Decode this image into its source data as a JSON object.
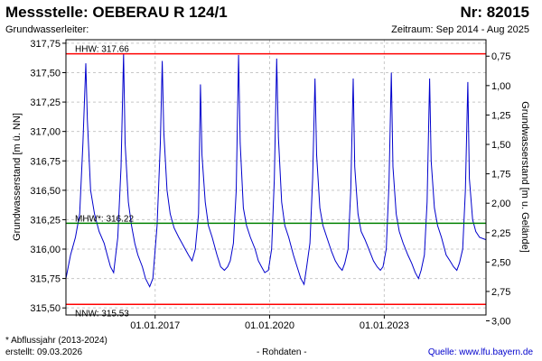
{
  "header": {
    "title": "Messstelle: OEBERAU R 124/1",
    "number": "Nr: 82015",
    "aquifer_label": "Grundwasserleiter:",
    "period": "Zeitraum: Sep 2014 - Aug 2025"
  },
  "footer": {
    "footnote": "* Abflussjahr (2013-2024)",
    "created": "erstellt:  09.03.2026",
    "status": "- Rohdaten -",
    "source": "Quelle: www.lfu.bayern.de"
  },
  "colors": {
    "series": "#0000cc",
    "hhw": "#ff0000",
    "nnw": "#ff0000",
    "mhw": "#008000",
    "grid": "#c8c8c8"
  },
  "chart_data": {
    "type": "line",
    "ylabel": "Grundwasserstand [m ü. NN]",
    "y2label": "Grundwasserstand [m u. Gelände]",
    "ylim": [
      315.44,
      317.78
    ],
    "xlim": [
      "2014-09-01",
      "2025-08-31"
    ],
    "yticks": [
      315.5,
      315.75,
      316.0,
      316.25,
      316.5,
      316.75,
      317.0,
      317.25,
      317.5,
      317.75
    ],
    "ytick_labels": [
      "315,50",
      "315,75",
      "316,00",
      "316,25",
      "316,50",
      "316,75",
      "317,00",
      "317,25",
      "317,50",
      "317,75"
    ],
    "y2ticks": [
      0.75,
      1.0,
      1.25,
      1.5,
      1.75,
      2.0,
      2.25,
      2.5,
      2.75,
      3.0
    ],
    "y2tick_labels": [
      "0,75",
      "1,00",
      "1,25",
      "1,50",
      "1,75",
      "2,00",
      "2,25",
      "2,50",
      "2,75",
      "3,00"
    ],
    "xticks": [
      "2017-01-01",
      "2020-01-01",
      "2023-01-01"
    ],
    "xtick_labels": [
      "01.01.2017",
      "01.01.2020",
      "01.01.2023"
    ],
    "grid": true,
    "reference_lines": [
      {
        "key": "hhw",
        "label": "HHW: 317.66",
        "value": 317.66
      },
      {
        "key": "mhw",
        "label": "MHW*: 316.22",
        "value": 316.22
      },
      {
        "key": "nnw",
        "label": "NNW: 315.53",
        "value": 315.53
      }
    ],
    "series": [
      {
        "x": [
          "2014-09-01",
          "2014-10-15",
          "2014-12-01",
          "2015-01-10",
          "2015-02-10",
          "2015-03-10",
          "2015-03-25",
          "2015-04-25",
          "2015-06-01",
          "2015-07-15",
          "2015-09-01",
          "2015-10-01",
          "2015-11-01",
          "2015-12-01",
          "2016-01-10",
          "2016-02-10",
          "2016-03-05",
          "2016-03-20",
          "2016-04-20",
          "2016-05-20",
          "2016-06-20",
          "2016-07-20",
          "2016-09-01",
          "2016-10-01",
          "2016-11-10",
          "2016-12-10",
          "2017-01-20",
          "2017-02-20",
          "2017-03-10",
          "2017-03-25",
          "2017-04-25",
          "2017-05-25",
          "2017-07-01",
          "2017-08-15",
          "2017-09-15",
          "2017-10-15",
          "2017-11-15",
          "2017-12-20",
          "2018-01-20",
          "2018-02-20",
          "2018-03-10",
          "2018-03-25",
          "2018-04-25",
          "2018-05-25",
          "2018-07-01",
          "2018-08-15",
          "2018-09-20",
          "2018-10-25",
          "2018-11-25",
          "2018-12-20",
          "2019-01-20",
          "2019-02-15",
          "2019-03-10",
          "2019-03-25",
          "2019-04-25",
          "2019-05-25",
          "2019-07-01",
          "2019-08-15",
          "2019-09-15",
          "2019-10-15",
          "2019-11-15",
          "2019-12-20",
          "2020-01-20",
          "2020-02-15",
          "2020-03-08",
          "2020-03-25",
          "2020-04-25",
          "2020-05-25",
          "2020-07-01",
          "2020-08-15",
          "2020-09-20",
          "2020-10-25",
          "2020-11-25",
          "2020-12-20",
          "2021-01-20",
          "2021-02-15",
          "2021-03-10",
          "2021-03-25",
          "2021-04-25",
          "2021-05-25",
          "2021-07-01",
          "2021-08-15",
          "2021-09-20",
          "2021-10-25",
          "2021-11-25",
          "2021-12-20",
          "2022-01-20",
          "2022-02-15",
          "2022-03-10",
          "2022-03-25",
          "2022-04-25",
          "2022-05-25",
          "2022-07-01",
          "2022-08-15",
          "2022-09-20",
          "2022-10-25",
          "2022-11-25",
          "2022-12-20",
          "2023-01-20",
          "2023-02-15",
          "2023-03-10",
          "2023-03-25",
          "2023-04-25",
          "2023-05-25",
          "2023-07-01",
          "2023-08-15",
          "2023-09-20",
          "2023-10-25",
          "2023-11-25",
          "2023-12-20",
          "2024-01-20",
          "2024-02-15",
          "2024-03-10",
          "2024-03-25",
          "2024-04-25",
          "2024-05-25",
          "2024-07-01",
          "2024-08-15",
          "2024-09-20",
          "2024-10-25",
          "2024-11-25",
          "2024-12-20",
          "2025-01-20",
          "2025-02-15",
          "2025-03-10",
          "2025-03-25",
          "2025-04-25",
          "2025-05-25",
          "2025-07-01",
          "2025-08-31"
        ],
        "values": [
          315.75,
          315.95,
          316.1,
          316.3,
          316.9,
          317.58,
          317.1,
          316.5,
          316.3,
          316.15,
          316.05,
          315.95,
          315.85,
          315.8,
          316.1,
          316.7,
          317.66,
          316.9,
          316.4,
          316.2,
          316.05,
          315.95,
          315.85,
          315.75,
          315.68,
          315.75,
          316.2,
          316.9,
          317.6,
          317.0,
          316.5,
          316.3,
          316.18,
          316.1,
          316.05,
          316.0,
          315.95,
          315.9,
          316.0,
          316.3,
          317.4,
          316.8,
          316.4,
          316.2,
          316.1,
          315.95,
          315.85,
          315.82,
          315.85,
          315.9,
          316.05,
          316.5,
          317.65,
          316.9,
          316.35,
          316.2,
          316.1,
          316.0,
          315.9,
          315.85,
          315.8,
          315.82,
          316.0,
          316.6,
          317.62,
          316.95,
          316.4,
          316.2,
          316.1,
          315.95,
          315.85,
          315.75,
          315.7,
          315.85,
          316.05,
          316.6,
          317.45,
          316.8,
          316.35,
          316.2,
          316.1,
          315.98,
          315.9,
          315.85,
          315.82,
          315.88,
          316.0,
          316.5,
          317.45,
          316.7,
          316.3,
          316.15,
          316.08,
          315.98,
          315.9,
          315.85,
          315.82,
          315.85,
          316.0,
          316.55,
          317.5,
          316.7,
          316.3,
          316.15,
          316.05,
          315.95,
          315.88,
          315.8,
          315.75,
          315.82,
          315.95,
          316.4,
          317.45,
          316.75,
          316.35,
          316.2,
          316.1,
          315.95,
          315.9,
          315.85,
          315.82,
          315.88,
          316.0,
          316.5,
          317.42,
          316.6,
          316.25,
          316.15,
          316.1,
          316.08
        ]
      }
    ]
  }
}
